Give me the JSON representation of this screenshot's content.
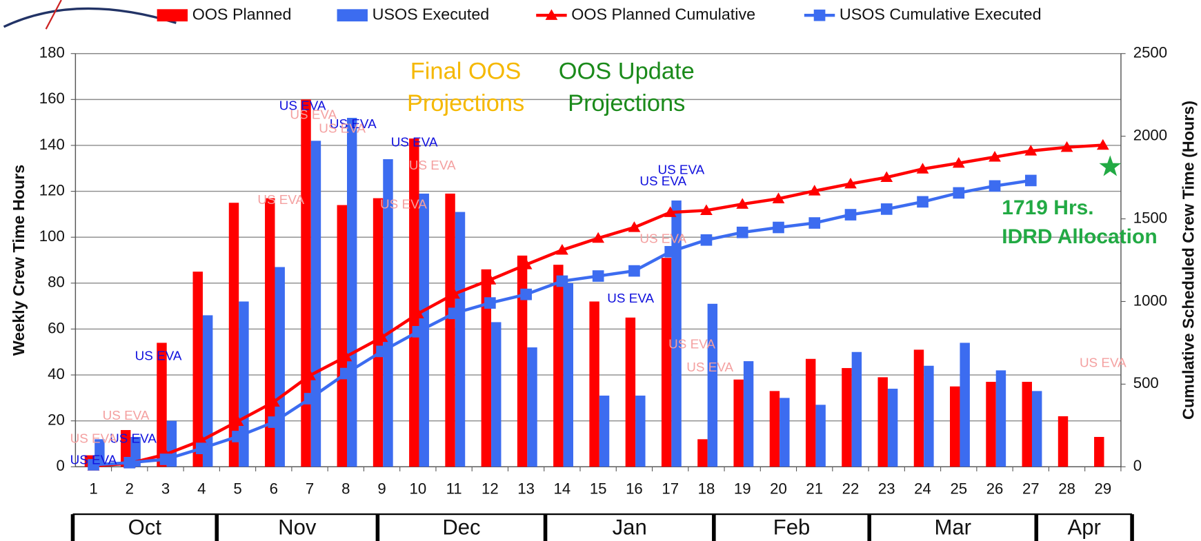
{
  "chart_data": {
    "type": "combo",
    "ylabel": "Weekly Crew Time Hours",
    "y2label": "Cumulative Scheduled Crew Time (Hours)",
    "x": [
      1,
      2,
      3,
      4,
      5,
      6,
      7,
      8,
      9,
      10,
      11,
      12,
      13,
      14,
      15,
      16,
      17,
      18,
      19,
      20,
      21,
      22,
      23,
      24,
      25,
      26,
      27,
      28,
      29
    ],
    "xlim": [
      0.5,
      29.5
    ],
    "ylim": [
      0,
      180
    ],
    "yticks": [
      0,
      20,
      40,
      60,
      80,
      100,
      120,
      140,
      160,
      180
    ],
    "y2lim": [
      0,
      2500
    ],
    "y2ticks": [
      0,
      500,
      1000,
      1500,
      2000,
      2500
    ],
    "grid": true,
    "series": [
      {
        "name": "OOS Planned",
        "type": "bar",
        "color": "#ff0000",
        "values": [
          5,
          16,
          54,
          85,
          115,
          117,
          160,
          114,
          117,
          143,
          119,
          86,
          92,
          88,
          72,
          65,
          91,
          12,
          38,
          33,
          47,
          43,
          39,
          51,
          35,
          37,
          37,
          22,
          13
        ]
      },
      {
        "name": "USOS Executed",
        "type": "bar",
        "color": "#3c6cf0",
        "values": [
          12,
          13,
          20,
          66,
          72,
          87,
          142,
          152,
          134,
          119,
          111,
          63,
          52,
          80,
          31,
          31,
          116,
          71,
          46,
          30,
          27,
          50,
          34,
          44,
          54,
          42,
          33,
          null,
          null
        ]
      },
      {
        "name": "OOS Planned Cumulative",
        "type": "line",
        "marker": "triangle",
        "axis": "y2",
        "color": "#ff0000",
        "values": [
          5,
          21,
          75,
          160,
          275,
          392,
          552,
          666,
          783,
          926,
          1045,
          1131,
          1223,
          1311,
          1383,
          1448,
          1539,
          1551,
          1589,
          1622,
          1669,
          1712,
          1751,
          1802,
          1837,
          1874,
          1911,
          1933,
          1946
        ]
      },
      {
        "name": "USOS Cumulative Executed",
        "type": "line",
        "marker": "square",
        "axis": "y2",
        "color": "#3c6cf0",
        "values": [
          12,
          25,
          45,
          111,
          183,
          270,
          412,
          564,
          698,
          817,
          928,
          991,
          1043,
          1123,
          1154,
          1185,
          1301,
          1372,
          1418,
          1448,
          1475,
          1525,
          1559,
          1603,
          1657,
          1699,
          1732,
          null,
          null
        ]
      }
    ],
    "star": {
      "x": 29.2,
      "y": 1815,
      "axis": "y2",
      "color": "#22aa44"
    },
    "notes": [
      {
        "lines": [
          "Final OOS",
          "Projections"
        ],
        "color": "#f5b800"
      },
      {
        "lines": [
          "OOS Update",
          "Projections"
        ],
        "color": "#1a8a1a"
      },
      {
        "lines": [
          "1719 Hrs.",
          "IDRD Allocation"
        ],
        "color": "#22aa44"
      }
    ],
    "annotations": [
      {
        "text": "US EVA",
        "x": 1,
        "y": 2.7,
        "color": "#1010dd"
      },
      {
        "text": "US EVA",
        "x": 2.1,
        "y": 12,
        "color": "#1010dd"
      },
      {
        "text": "US EVA",
        "x": 2.8,
        "y": 48,
        "color": "#1010dd"
      },
      {
        "text": "US EVA",
        "x": 6.8,
        "y": 157,
        "color": "#1010dd"
      },
      {
        "text": "US EVA",
        "x": 8.2,
        "y": 149,
        "color": "#1010dd"
      },
      {
        "text": "US EVA",
        "x": 9.9,
        "y": 141,
        "color": "#1010dd"
      },
      {
        "text": "US EVA",
        "x": 15.9,
        "y": 73,
        "color": "#1010dd"
      },
      {
        "text": "US EVA",
        "x": 16.8,
        "y": 124,
        "color": "#1010dd"
      },
      {
        "text": "US EVA",
        "x": 17.3,
        "y": 129,
        "color": "#1010dd"
      },
      {
        "text": "US EVA",
        "x": 1,
        "y": 12,
        "color": "#f4a0a0"
      },
      {
        "text": "US EVA",
        "x": 1.9,
        "y": 22,
        "color": "#f4a0a0"
      },
      {
        "text": "US EVA",
        "x": 7.1,
        "y": 153,
        "color": "#f4a0a0"
      },
      {
        "text": "US EVA",
        "x": 7.9,
        "y": 147,
        "color": "#f4a0a0"
      },
      {
        "text": "US EVA",
        "x": 6.2,
        "y": 116,
        "color": "#f4a0a0"
      },
      {
        "text": "US EVA",
        "x": 10.4,
        "y": 131,
        "color": "#f4a0a0"
      },
      {
        "text": "US EVA",
        "x": 9.6,
        "y": 114,
        "color": "#f4a0a0"
      },
      {
        "text": "US EVA",
        "x": 16.8,
        "y": 99,
        "color": "#f4a0a0"
      },
      {
        "text": "US EVA",
        "x": 17.6,
        "y": 53,
        "color": "#f4a0a0"
      },
      {
        "text": "US EVA",
        "x": 18.1,
        "y": 43,
        "color": "#f4a0a0"
      },
      {
        "text": "US EVA",
        "x": 29,
        "y": 45,
        "color": "#f4a0a0"
      }
    ],
    "months": [
      "Oct",
      "Nov",
      "Dec",
      "Jan",
      "Feb",
      "Mar",
      "Apr"
    ]
  }
}
